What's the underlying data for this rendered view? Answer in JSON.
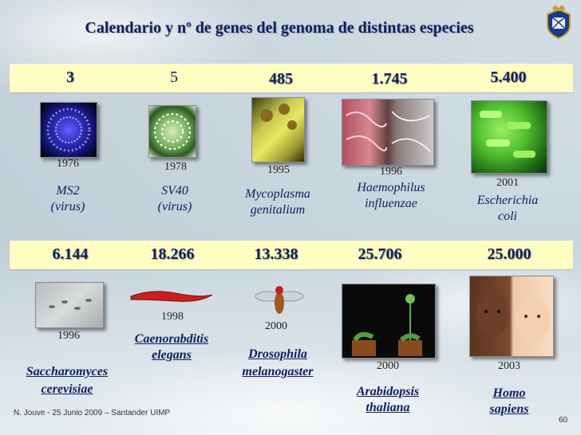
{
  "title": "Calendario y nº de genes del genoma de distintas especies",
  "row1": [
    {
      "genes": "3",
      "year": "1976",
      "name1": "MS2",
      "name2": "(virus)"
    },
    {
      "genes": "5",
      "year": "1978",
      "name1": "SV40",
      "name2": "(virus)"
    },
    {
      "genes": "485",
      "year": "1995",
      "name1": "Mycoplasma",
      "name2": "genitalium"
    },
    {
      "genes": "1.745",
      "year": "1996",
      "name1": "Haemophilus",
      "name2": "influenzae"
    },
    {
      "genes": "5.400",
      "year": "2001",
      "name1": "Escherichia",
      "name2": "coli"
    }
  ],
  "row2": [
    {
      "genes": "6.144",
      "year": "1996",
      "name1": "Saccharomyces",
      "name2": "cerevisiae"
    },
    {
      "genes": "18.266",
      "year": "1998",
      "name1": "Caenorabditis",
      "name2": "elegans"
    },
    {
      "genes": "13.338",
      "year": "2000",
      "name1": "Drosophila",
      "name2": "melanogaster"
    },
    {
      "genes": "25.706",
      "year": "2000",
      "name1": "Arabidopsis",
      "name2": "thaliana"
    },
    {
      "genes": "25.000",
      "year": "2003",
      "name1": "Homo",
      "name2": "sapiens"
    }
  ],
  "footer": "N. Jouve - 25 Junio  2009 – Santander UIMP",
  "page_number": "60",
  "colors": {
    "title": "#0f2060",
    "band": "#fdfdc4"
  }
}
